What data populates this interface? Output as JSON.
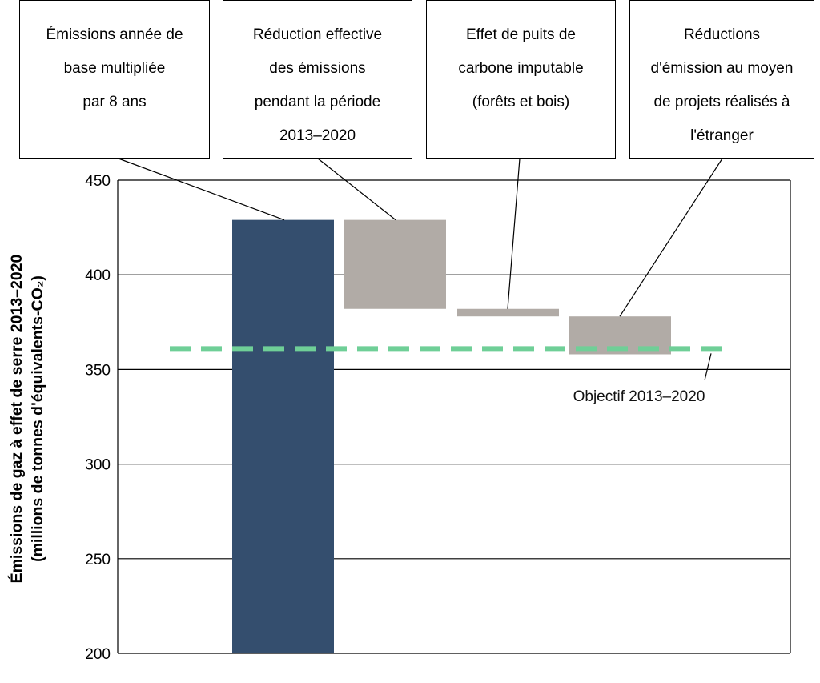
{
  "chart_data": {
    "type": "bar",
    "variant": "waterfall",
    "ylabel": "Émissions de gaz à effet de serre 2013–2020",
    "ylabel_units": "(millions de tonnes d'équivalents-CO₂)",
    "ylim": [
      200,
      450
    ],
    "yticks": [
      200,
      250,
      300,
      350,
      400,
      450
    ],
    "grid": true,
    "bars": [
      {
        "name": "Émissions année de base multipliée par 8 ans",
        "label_lines": [
          "Émissions année de",
          "base multipliée",
          "par 8 ans"
        ],
        "start": 200,
        "end": 429,
        "color": "#344e6e"
      },
      {
        "name": "Réduction effective des émissions pendant la période 2013–2020",
        "label_lines": [
          "Réduction effective",
          "des émissions",
          "pendant la période",
          "2013–2020"
        ],
        "start": 429,
        "end": 382,
        "color": "#b1aba6"
      },
      {
        "name": "Effet de puits de carbone imputable (forêts et bois)",
        "label_lines": [
          "Effet de puits de",
          "carbone imputable",
          "(forêts et bois)"
        ],
        "start": 382,
        "end": 378,
        "color": "#b1aba6"
      },
      {
        "name": "Réductions d'émission au moyen de projets réalisés à l'étranger",
        "label_lines": [
          "Réductions",
          "d'émission au moyen",
          "de projets réalisés à",
          "l'étranger"
        ],
        "start": 378,
        "end": 358,
        "color": "#b1aba6"
      }
    ],
    "target": {
      "label": "Objectif 2013–2020",
      "value": 361,
      "color": "#6fcf97",
      "style": "dashed"
    }
  }
}
